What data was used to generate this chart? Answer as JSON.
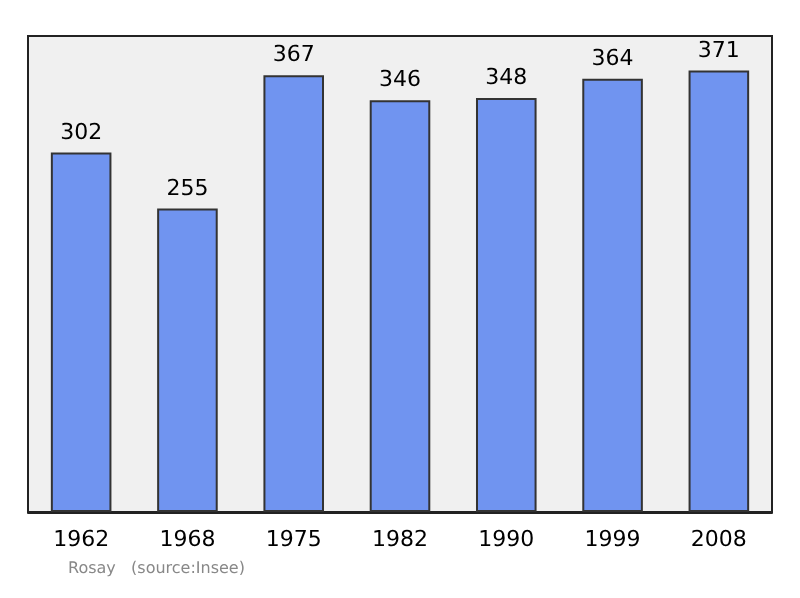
{
  "chart_data": {
    "type": "bar",
    "categories": [
      "1962",
      "1968",
      "1975",
      "1982",
      "1990",
      "1999",
      "2008"
    ],
    "values": [
      302,
      255,
      367,
      346,
      348,
      364,
      371
    ],
    "color": "#7094f0",
    "data_labels": true,
    "annotations": [
      "Rosay   (source:Insee)"
    ]
  }
}
